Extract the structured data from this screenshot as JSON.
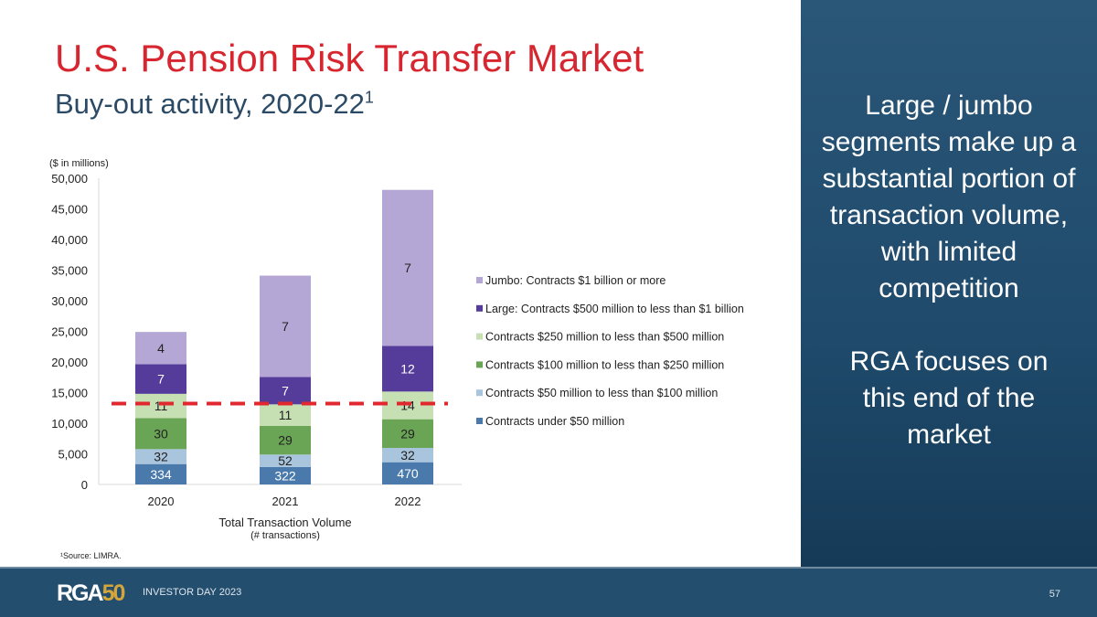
{
  "title": "U.S. Pension Risk Transfer Market",
  "subtitle": "Buy-out activity, 2020-22",
  "subtitle_sup": "1",
  "side": {
    "text1": "Large / jumbo segments make up a substantial portion of transaction volume, with limited competition",
    "text2": "RGA focuses on this end of the market"
  },
  "source": "¹Source: LIMRA.",
  "footer": {
    "logo": "RGA50",
    "event": "INVESTOR DAY 2023",
    "page": "57"
  },
  "chart_data": {
    "type": "bar",
    "stacked": true,
    "unit_label": "($ in millions)",
    "xlabel": "Total Transaction Volume",
    "xlabel_sub": "(# transactions)",
    "categories": [
      "2020",
      "2021",
      "2022"
    ],
    "ylim": [
      0,
      50000
    ],
    "yticks": [
      "0",
      "5,000",
      "10,000",
      "15,000",
      "20,000",
      "25,000",
      "30,000",
      "35,000",
      "40,000",
      "45,000",
      "50,000"
    ],
    "legend_position": "right",
    "reference_line": {
      "value": 13200,
      "color": "#e0282e",
      "style": "dashed"
    },
    "series": [
      {
        "name": "Contracts under $50 million",
        "color": "#4a7aab",
        "values": [
          3330,
          2840,
          3630
        ],
        "labels": [
          "334",
          "322",
          "470"
        ],
        "label_color": "#ffffff"
      },
      {
        "name": "Contracts $50 million to less than $100 million",
        "color": "#a9c4dd",
        "values": [
          2440,
          2040,
          2340
        ],
        "labels": [
          "32",
          "52",
          "32"
        ],
        "label_color": "#222222"
      },
      {
        "name": "Contracts $100 million to less than $250 million",
        "color": "#6aa556",
        "values": [
          5080,
          4670,
          4680
        ],
        "labels": [
          "30",
          "29",
          "29"
        ],
        "label_color": "#222222"
      },
      {
        "name": "Contracts $250 million to less than $500 million",
        "color": "#c6e0b4",
        "values": [
          3950,
          3530,
          4520
        ],
        "labels": [
          "11",
          "11",
          "14"
        ],
        "label_color": "#222222"
      },
      {
        "name": "Large: Contracts $500 million to less than $1 billion",
        "color": "#553c9a",
        "values": [
          4850,
          4470,
          7470
        ],
        "labels": [
          "7",
          "7",
          "12"
        ],
        "label_color": "#ffffff"
      },
      {
        "name": "Jumbo: Contracts $1 billion or more",
        "color": "#b4a7d6",
        "values": [
          5250,
          16550,
          25460
        ],
        "labels": [
          "4",
          "7",
          "7"
        ],
        "label_color": "#222222"
      }
    ]
  }
}
